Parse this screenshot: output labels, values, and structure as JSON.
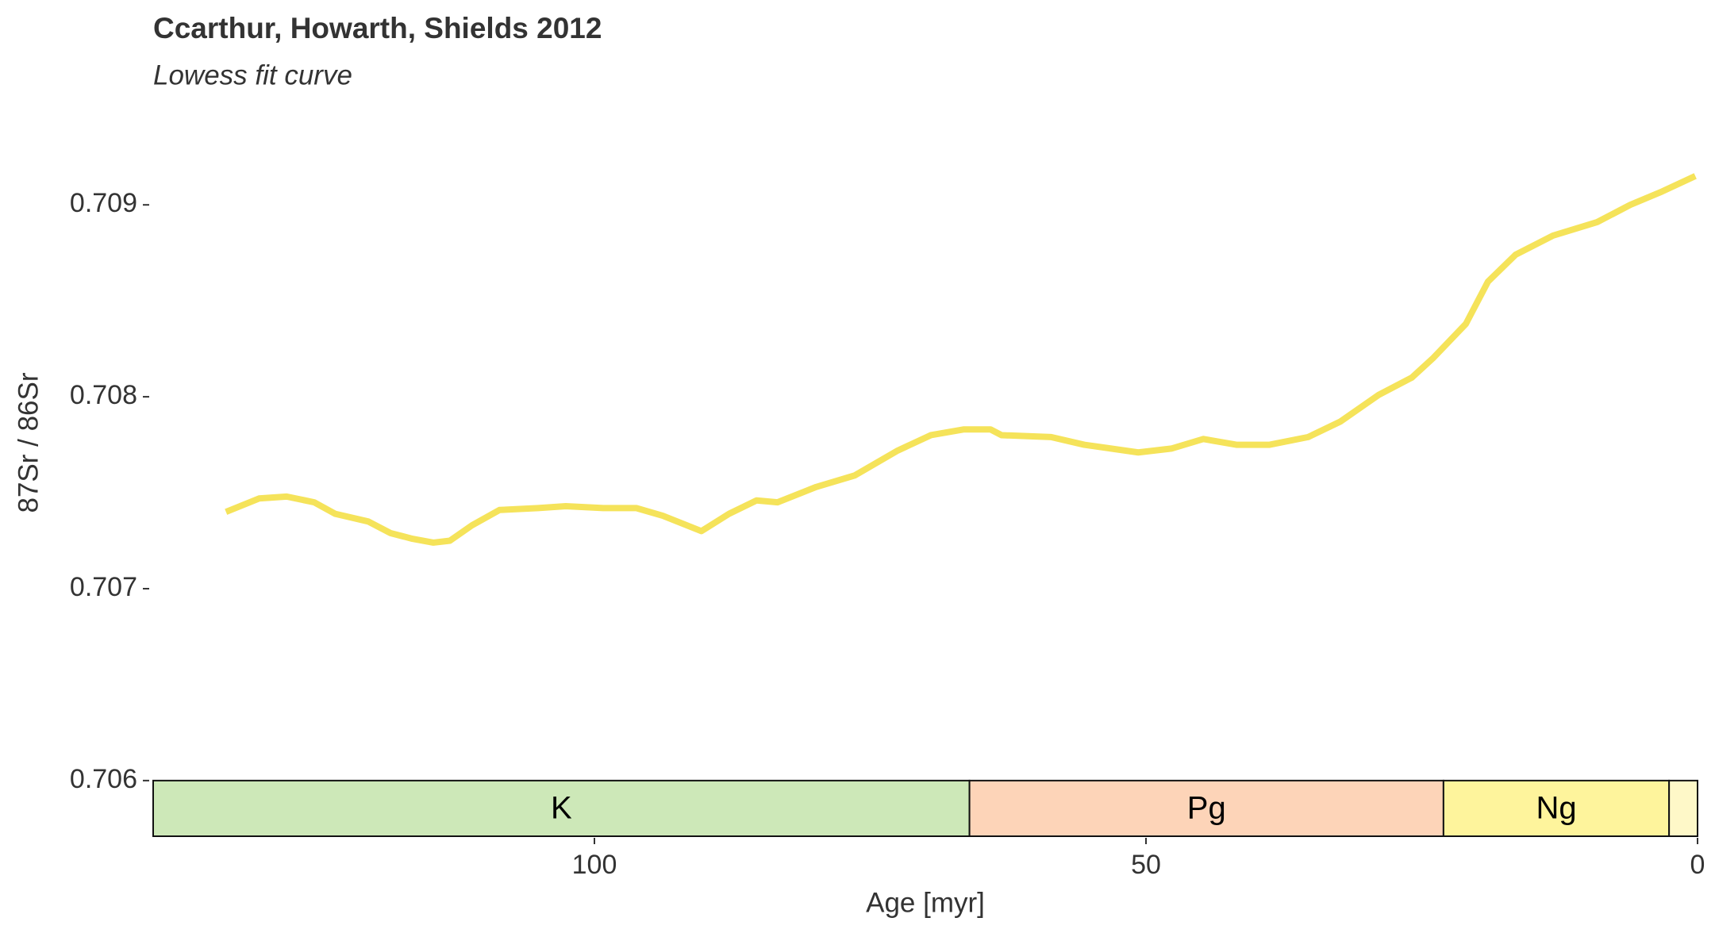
{
  "chart_data": {
    "type": "line",
    "title": "Ccarthur, Howarth, Shields 2012",
    "subtitle": "Lowess fit curve",
    "x_label": "Age [myr]",
    "y_label": "87Sr / 86Sr",
    "x": [
      133.4,
      130.4,
      127.9,
      125.4,
      123.5,
      120.5,
      118.5,
      116.5,
      114.6,
      113.1,
      111.1,
      108.6,
      105.1,
      102.6,
      99.2,
      96.2,
      93.8,
      90.3,
      87.8,
      85.3,
      83.4,
      79.9,
      76.4,
      72.5,
      69.5,
      66.5,
      64.1,
      63.1,
      58.6,
      55.6,
      50.7,
      47.7,
      44.8,
      41.8,
      38.8,
      35.3,
      32.4,
      28.9,
      25.9,
      24.0,
      21.0,
      19.0,
      16.5,
      13.1,
      9.1,
      6.1,
      3.2,
      0.2
    ],
    "series": [
      {
        "name": "Lowess",
        "color": "#f5e35a",
        "values": [
          0.7074,
          0.70747,
          0.70748,
          0.70745,
          0.70739,
          0.70735,
          0.70729,
          0.70726,
          0.70724,
          0.70725,
          0.70733,
          0.70741,
          0.70742,
          0.70743,
          0.70742,
          0.70742,
          0.70738,
          0.7073,
          0.70739,
          0.70746,
          0.70745,
          0.70753,
          0.70759,
          0.70772,
          0.7078,
          0.70783,
          0.70783,
          0.7078,
          0.70779,
          0.70775,
          0.70771,
          0.70773,
          0.70778,
          0.70775,
          0.70775,
          0.70779,
          0.70787,
          0.70801,
          0.7081,
          0.7082,
          0.70838,
          0.7086,
          0.70874,
          0.70884,
          0.70891,
          0.709,
          0.70907,
          0.70915
        ]
      }
    ],
    "xlim": [
      140,
      0
    ],
    "xticks": [
      100,
      50,
      0
    ],
    "ylim": [
      0.70571,
      0.70922
    ],
    "yticks": [
      0.706,
      0.707,
      0.708,
      0.709
    ],
    "periods": [
      {
        "label": "K",
        "start": 140,
        "end": 66,
        "color": "#cde8b8"
      },
      {
        "label": "Pg",
        "start": 66,
        "end": 23.03,
        "color": "#fdd4b8"
      },
      {
        "label": "Ng",
        "start": 23.03,
        "end": 2.58,
        "color": "#fef49c"
      },
      {
        "label": null,
        "start": 2.58,
        "end": 0,
        "color": "#fef8c8"
      }
    ],
    "period_floor": 0.706
  }
}
